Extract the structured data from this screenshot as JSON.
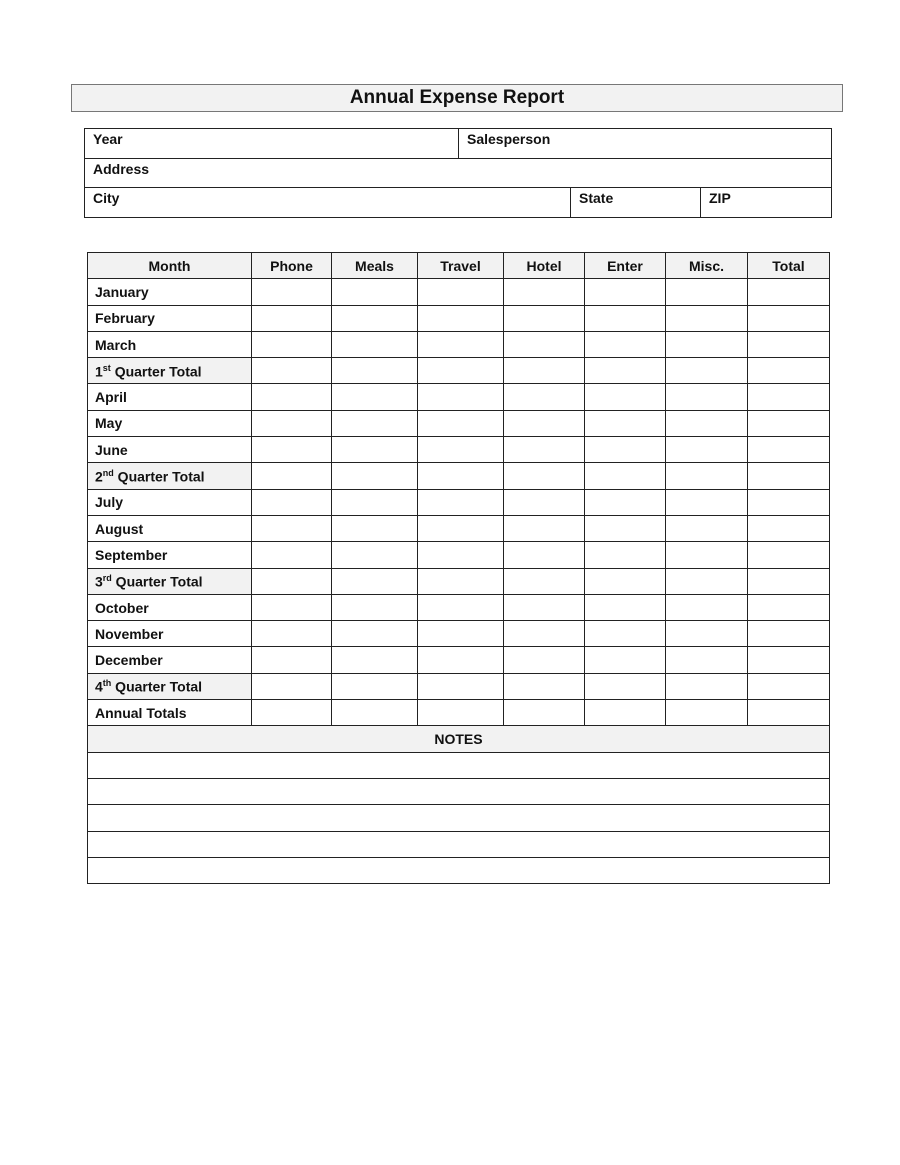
{
  "title": "Annual Expense Report",
  "info": {
    "year_label": "Year",
    "salesperson_label": "Salesperson",
    "address_label": "Address",
    "city_label": "City",
    "state_label": "State",
    "zip_label": "ZIP"
  },
  "table": {
    "columns": [
      "Month",
      "Phone",
      "Meals",
      "Travel",
      "Hotel",
      "Enter",
      "Misc.",
      "Total"
    ],
    "rows": [
      {
        "label": "January"
      },
      {
        "label": "February"
      },
      {
        "label": "March"
      },
      {
        "label": "1",
        "sup": "st",
        "suffix": " Quarter Total",
        "quarter": true
      },
      {
        "label": "April"
      },
      {
        "label": "May"
      },
      {
        "label": "June"
      },
      {
        "label": "2",
        "sup": "nd",
        "suffix": " Quarter Total",
        "quarter": true
      },
      {
        "label": "July"
      },
      {
        "label": "August"
      },
      {
        "label": "September"
      },
      {
        "label": "3",
        "sup": "rd",
        "suffix": " Quarter Total",
        "quarter": true
      },
      {
        "label": "October"
      },
      {
        "label": "November"
      },
      {
        "label": "December"
      },
      {
        "label": "4",
        "sup": "th",
        "suffix": " Quarter Total",
        "quarter": true
      },
      {
        "label": "Annual Totals"
      }
    ],
    "notes_label": "NOTES",
    "notes_lines": 5
  }
}
